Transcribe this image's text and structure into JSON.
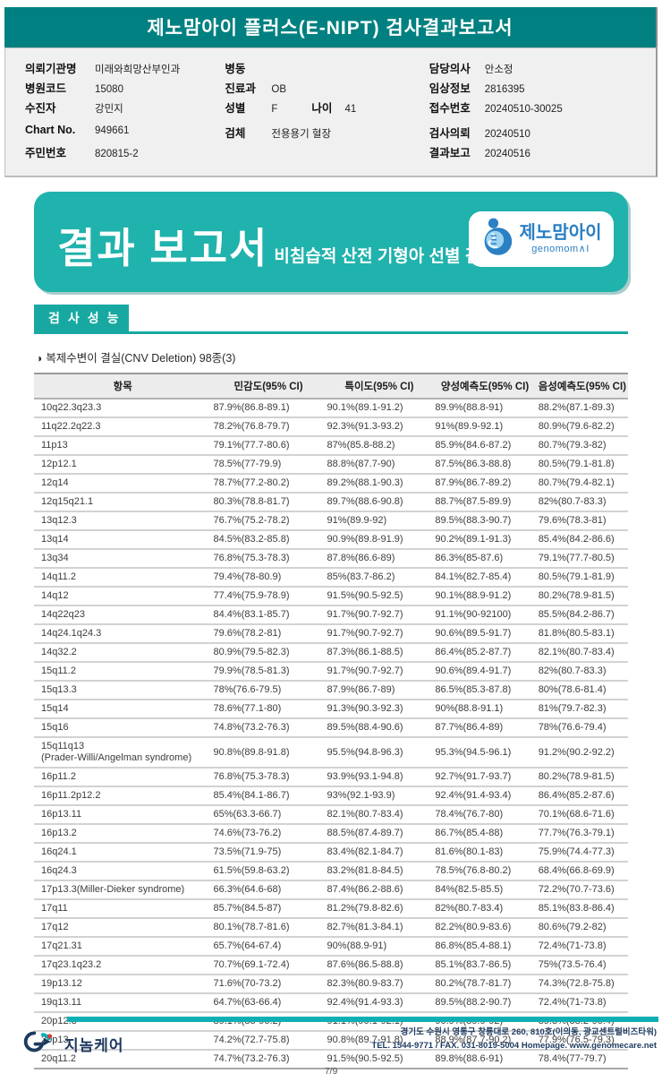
{
  "report_header": {
    "title": "제노맘아이 플러스(E-NIPT) 검사결과보고서"
  },
  "patient_info": {
    "org_label": "의뢰기관명",
    "org_value": "미래와희망산부인과",
    "hospital_code_label": "병원코드",
    "hospital_code_value": "15080",
    "patient_label": "수진자",
    "patient_value": "강민지",
    "chart_no_label": "Chart No.",
    "chart_no_value": "949661",
    "resident_id_label": "주민번호",
    "resident_id_value": "820815-2",
    "ward_label": "병동",
    "ward_value": "",
    "department_label": "진료과",
    "department_value": "OB",
    "sex_label": "성별",
    "sex_value": "F",
    "age_label": "나이",
    "age_value": "41",
    "specimen_label": "검체",
    "specimen_value": "전용용기 혈장",
    "doctor_label": "담당의사",
    "doctor_value": "안소정",
    "clinical_info_label": "임상정보",
    "clinical_info_value": "2816395",
    "receipt_no_label": "접수번호",
    "receipt_no_value": "20240510-30025",
    "request_date_label": "검사의뢰",
    "request_date_value": "20240510",
    "report_date_label": "결과보고",
    "report_date_value": "20240516"
  },
  "banner": {
    "title": "결과 보고서",
    "subtitle": "비침습적 산전 기형아 선별 검사",
    "logo_kr": "제노맘아이",
    "logo_en": "genomom∧I"
  },
  "section": {
    "title": "검사성능"
  },
  "table": {
    "caption_bullet": "◑",
    "caption": "복제수변이 결실(CNV Deletion) 98종(3)",
    "columns": [
      "항목",
      "민감도(95% CI)",
      "특이도(95% CI)",
      "양성예측도(95% CI)",
      "음성예측도(95% CI)"
    ],
    "rows": [
      [
        "10q22.3q23.3",
        "87.9%(86.8-89.1)",
        "90.1%(89.1-91.2)",
        "89.9%(88.8-91)",
        "88.2%(87.1-89.3)"
      ],
      [
        "11q22.2q22.3",
        "78.2%(76.8-79.7)",
        "92.3%(91.3-93.2)",
        "91%(89.9-92.1)",
        "80.9%(79.6-82.2)"
      ],
      [
        "11p13",
        "79.1%(77.7-80.6)",
        "87%(85.8-88.2)",
        "85.9%(84.6-87.2)",
        "80.7%(79.3-82)"
      ],
      [
        "12p12.1",
        "78.5%(77-79.9)",
        "88.8%(87.7-90)",
        "87.5%(86.3-88.8)",
        "80.5%(79.1-81.8)"
      ],
      [
        "12q14",
        "78.7%(77.2-80.2)",
        "89.2%(88.1-90.3)",
        "87.9%(86.7-89.2)",
        "80.7%(79.4-82.1)"
      ],
      [
        "12q15q21.1",
        "80.3%(78.8-81.7)",
        "89.7%(88.6-90.8)",
        "88.7%(87.5-89.9)",
        "82%(80.7-83.3)"
      ],
      [
        "13q12.3",
        "76.7%(75.2-78.2)",
        "91%(89.9-92)",
        "89.5%(88.3-90.7)",
        "79.6%(78.3-81)"
      ],
      [
        "13q14",
        "84.5%(83.2-85.8)",
        "90.9%(89.8-91.9)",
        "90.2%(89.1-91.3)",
        "85.4%(84.2-86.6)"
      ],
      [
        "13q34",
        "76.8%(75.3-78.3)",
        "87.8%(86.6-89)",
        "86.3%(85-87.6)",
        "79.1%(77.7-80.5)"
      ],
      [
        "14q11.2",
        "79.4%(78-80.9)",
        "85%(83.7-86.2)",
        "84.1%(82.7-85.4)",
        "80.5%(79.1-81.9)"
      ],
      [
        "14q12",
        "77.4%(75.9-78.9)",
        "91.5%(90.5-92.5)",
        "90.1%(88.9-91.2)",
        "80.2%(78.9-81.5)"
      ],
      [
        "14q22q23",
        "84.4%(83.1-85.7)",
        "91.7%(90.7-92.7)",
        "91.1%(90-92100)",
        "85.5%(84.2-86.7)"
      ],
      [
        "14q24.1q24.3",
        "79.6%(78.2-81)",
        "91.7%(90.7-92.7)",
        "90.6%(89.5-91.7)",
        "81.8%(80.5-83.1)"
      ],
      [
        "14q32.2",
        "80.9%(79.5-82.3)",
        "87.3%(86.1-88.5)",
        "86.4%(85.2-87.7)",
        "82.1%(80.7-83.4)"
      ],
      [
        "15q11.2",
        "79.9%(78.5-81.3)",
        "91.7%(90.7-92.7)",
        "90.6%(89.4-91.7)",
        "82%(80.7-83.3)"
      ],
      [
        "15q13.3",
        "78%(76.6-79.5)",
        "87.9%(86.7-89)",
        "86.5%(85.3-87.8)",
        "80%(78.6-81.4)"
      ],
      [
        "15q14",
        "78.6%(77.1-80)",
        "91.3%(90.3-92.3)",
        "90%(88.8-91.1)",
        "81%(79.7-82.3)"
      ],
      [
        "15q16",
        "74.8%(73.2-76.3)",
        "89.5%(88.4-90.6)",
        "87.7%(86.4-89)",
        "78%(76.6-79.4)"
      ],
      [
        "15q11q13\n(Prader-Willi/Angelman syndrome)",
        "90.8%(89.8-91.8)",
        "95.5%(94.8-96.3)",
        "95.3%(94.5-96.1)",
        "91.2%(90.2-92.2)"
      ],
      [
        "16p11.2",
        "76.8%(75.3-78.3)",
        "93.9%(93.1-94.8)",
        "92.7%(91.7-93.7)",
        "80.2%(78.9-81.5)"
      ],
      [
        "16p11.2p12.2",
        "85.4%(84.1-86.7)",
        "93%(92.1-93.9)",
        "92.4%(91.4-93.4)",
        "86.4%(85.2-87.6)"
      ],
      [
        "16p13.11",
        "65%(63.3-66.7)",
        "82.1%(80.7-83.4)",
        "78.4%(76.7-80)",
        "70.1%(68.6-71.6)"
      ],
      [
        "16p13.2",
        "74.6%(73-76.2)",
        "88.5%(87.4-89.7)",
        "86.7%(85.4-88)",
        "77.7%(76.3-79.1)"
      ],
      [
        "16q24.1",
        "73.5%(71.9-75)",
        "83.4%(82.1-84.7)",
        "81.6%(80.1-83)",
        "75.9%(74.4-77.3)"
      ],
      [
        "16q24.3",
        "61.5%(59.8-63.2)",
        "83.2%(81.8-84.5)",
        "78.5%(76.8-80.2)",
        "68.4%(66.8-69.9)"
      ],
      [
        "17p13.3(Miller-Dieker syndrome)",
        "66.3%(64.6-68)",
        "87.4%(86.2-88.6)",
        "84%(82.5-85.5)",
        "72.2%(70.7-73.6)"
      ],
      [
        "17q11",
        "85.7%(84.5-87)",
        "81.2%(79.8-82.6)",
        "82%(80.7-83.4)",
        "85.1%(83.8-86.4)"
      ],
      [
        "17q12",
        "80.1%(78.7-81.6)",
        "82.7%(81.3-84.1)",
        "82.2%(80.9-83.6)",
        "80.6%(79.2-82)"
      ],
      [
        "17q21.31",
        "65.7%(64-67.4)",
        "90%(88.9-91)",
        "86.8%(85.4-88.1)",
        "72.4%(71-73.8)"
      ],
      [
        "17q23.1q23.2",
        "70.7%(69.1-72.4)",
        "87.6%(86.5-88.8)",
        "85.1%(83.7-86.5)",
        "75%(73.5-76.4)"
      ],
      [
        "19p13.12",
        "71.6%(70-73.2)",
        "82.3%(80.9-83.7)",
        "80.2%(78.7-81.7)",
        "74.3%(72.8-75.8)"
      ],
      [
        "19q13.11",
        "64.7%(63-66.4)",
        "92.4%(91.4-93.3)",
        "89.5%(88.2-90.7)",
        "72.4%(71-73.8)"
      ],
      [
        "20p12.3",
        "89.1%(88-90.2)",
        "91.1%(90.1-92.1)",
        "90.9%(89.9-92)",
        "89.3%(88.2-90.4)"
      ],
      [
        "20p13",
        "74.2%(72.7-75.8)",
        "90.8%(89.7-91.8)",
        "88.9%(87.7-90.2)",
        "77.9%(76.5-79.3)"
      ],
      [
        "20q11.2",
        "74.7%(73.2-76.3)",
        "91.5%(90.5-92.5)",
        "89.8%(88.6-91)",
        "78.4%(77-79.7)"
      ]
    ]
  },
  "footer": {
    "company": "지놈케어",
    "address_line1": "경기도 수원시 영통구 창룡대로 260, 810호(이의동, 광교센트럴비즈타워)",
    "address_line2": "TEL. 1544-9771 / FAX. 031-8019-5004 Homepage. www.genomecare.net",
    "page": "7/9"
  },
  "colors": {
    "header_teal": "#008080",
    "banner_teal": "#20b2ac",
    "section_teal": "#17a9a1",
    "footer_teal": "#0cb0b4",
    "logo_blue": "#2b7fc3",
    "navy": "#1d3a5f"
  }
}
